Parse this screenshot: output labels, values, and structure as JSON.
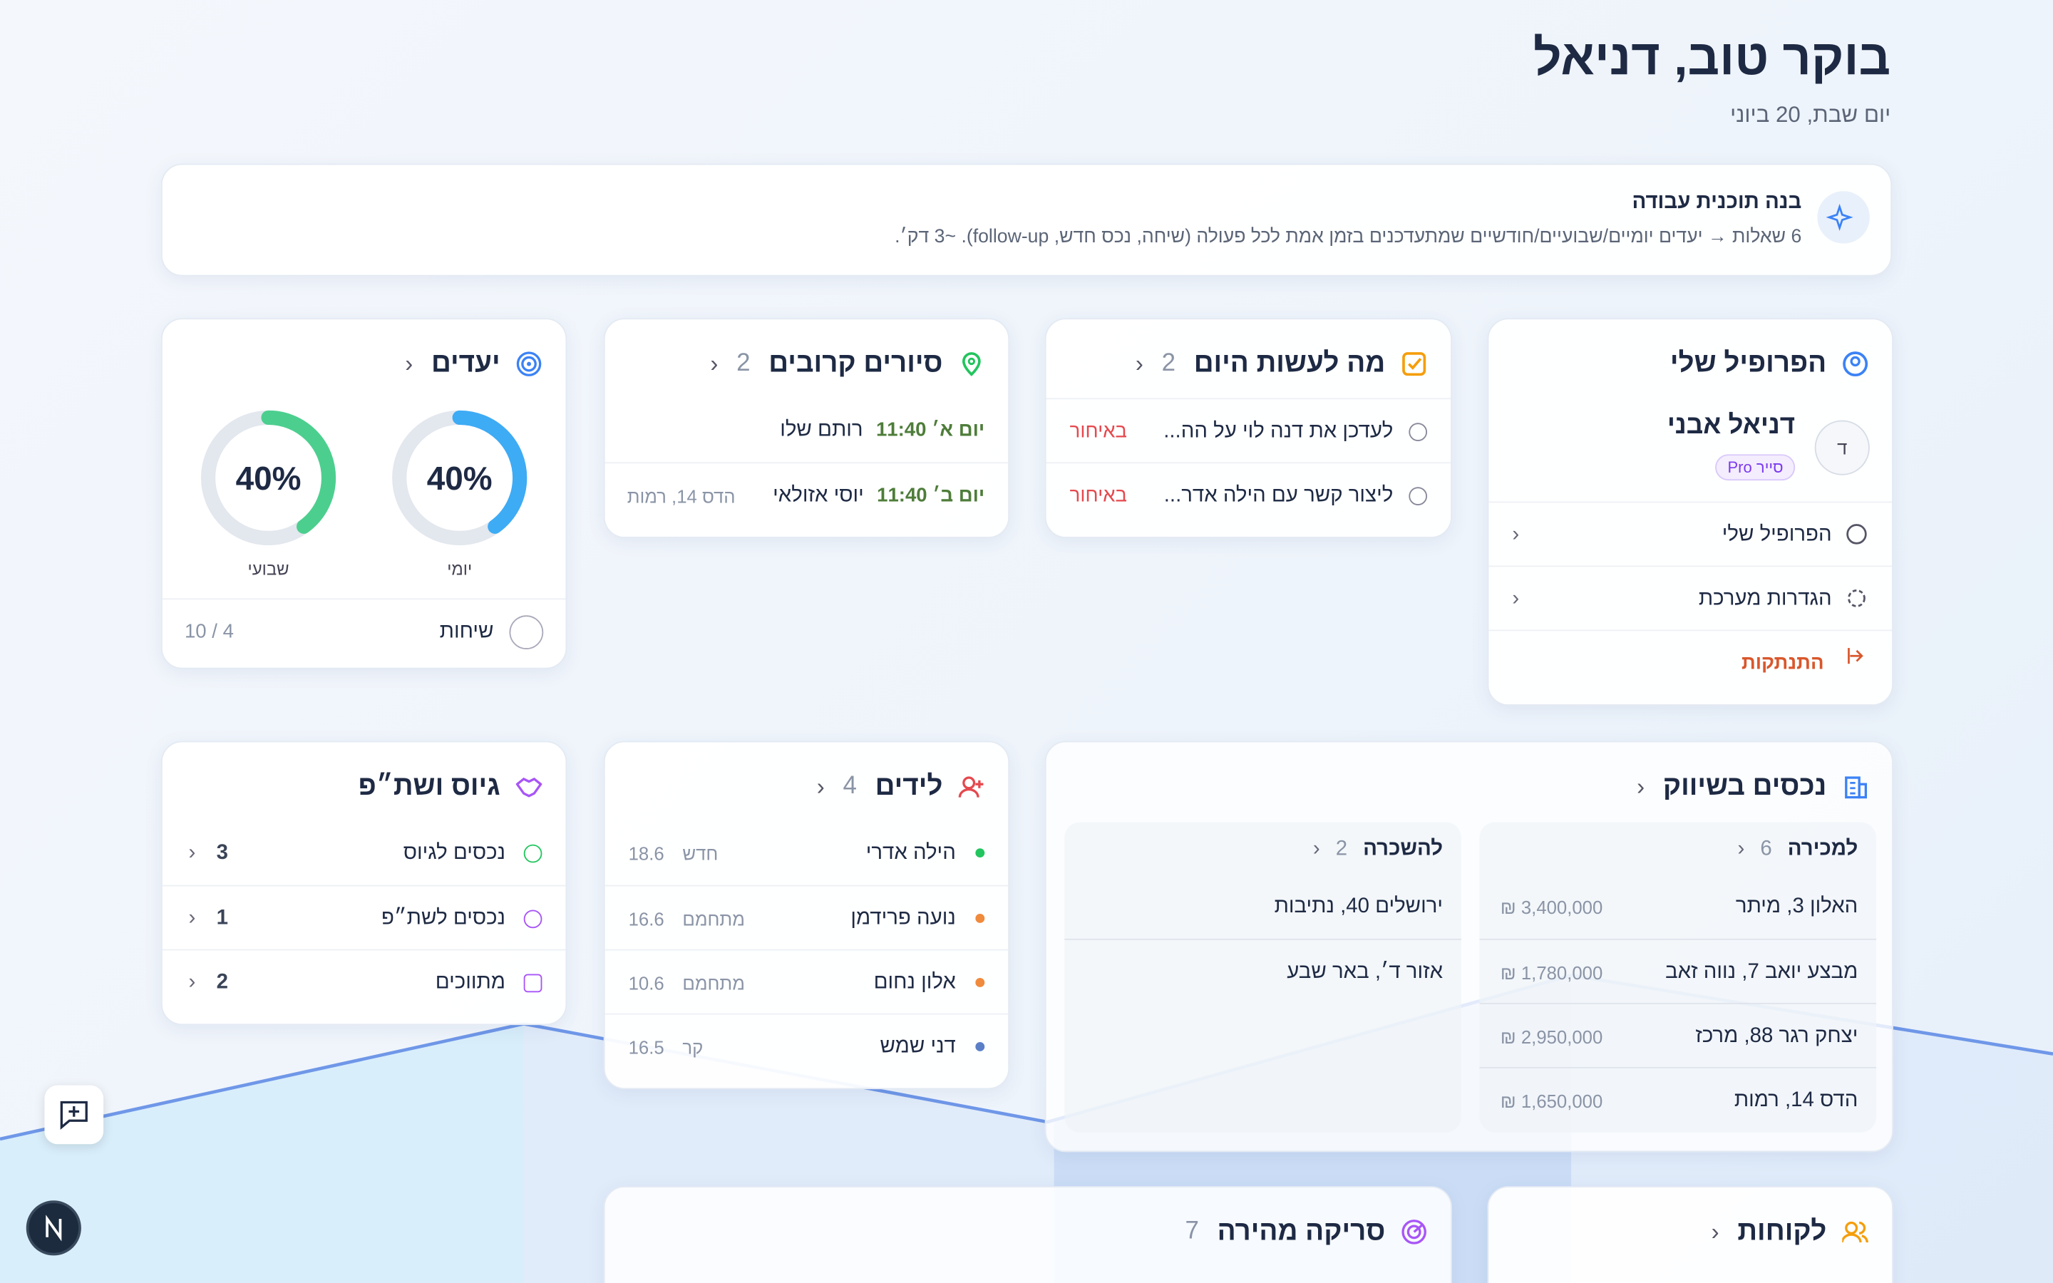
{
  "header": {
    "title": "בוקר טוב, דניאל",
    "date": "יום שבת, 20 ביוני"
  },
  "banner": {
    "title": "בנה תוכנית עבודה",
    "text": "6 שאלות → יעדים יומיים/שבועיים/חודשיים שמתעדכנים בזמן אמת לכל פעולה (שיחה, נכס חדש, follow-up). ~3 דק׳."
  },
  "profile": {
    "title": "הפרופיל שלי",
    "name": "דניאל אבני",
    "initial": "ד",
    "badge": "סייר Pro",
    "menu": [
      "הפרופיל שלי",
      "הגדרות מערכת"
    ],
    "logout": "התנתקות"
  },
  "today": {
    "title": "מה לעשות היום",
    "count": "2",
    "tasks": [
      {
        "text": "לעדכן את דנה לוי על הה...",
        "status": "באיחור"
      },
      {
        "text": "ליצור קשר עם הילה אדר...",
        "status": "באיחור"
      }
    ]
  },
  "tours": {
    "title": "סיורים קרובים",
    "count": "2",
    "items": [
      {
        "time": "יום א׳ 11:40",
        "name": "רותם שלו"
      },
      {
        "time": "יום ב׳ 11:40",
        "name": "יוסי אזולאי",
        "place": "הדס 14, רמות"
      }
    ]
  },
  "goals": {
    "title": "יעדים",
    "rings": [
      {
        "label": "יומי",
        "percent": {
          "value": 40,
          "label": "40%"
        }
      },
      {
        "label": "שבועי",
        "percent": {
          "value": 40,
          "label": "40%"
        }
      }
    ],
    "calls": {
      "label": "שיחות",
      "progress": "10 / 4"
    }
  },
  "listings": {
    "title": "נכסים בשיווק",
    "sale": {
      "title": "למכירה",
      "count": "6",
      "items": [
        {
          "address": "האלון 3, מיתר",
          "price": "3,400,000 ₪"
        },
        {
          "address": "מבצע יואב 7, נווה זאב",
          "price": "1,780,000 ₪"
        },
        {
          "address": "יצחק רגר 88, מרכז",
          "price": "2,950,000 ₪"
        },
        {
          "address": "הדס 14, רמות",
          "price": "1,650,000 ₪"
        }
      ]
    },
    "rent": {
      "title": "להשכרה",
      "count": "2",
      "items": [
        "ירושלים 40, נתיבות",
        "אזור ד׳, באר שבע"
      ]
    }
  },
  "leads": {
    "title": "לידים",
    "count": "4",
    "items": [
      {
        "name": "הילה אדרי",
        "status": "חדש",
        "score": "18.6"
      },
      {
        "name": "נועה פרידמן",
        "status": "מתחמם",
        "score": "16.6"
      },
      {
        "name": "אלון נחום",
        "status": "מתחמם",
        "score": "10.6"
      },
      {
        "name": "דני שמש",
        "status": "קר",
        "score": "16.5"
      }
    ]
  },
  "recruit": {
    "title": "גיוס ושת״פ",
    "items": [
      {
        "label": "נכסים לגיוס",
        "count": "3"
      },
      {
        "label": "נכסים לשת״פ",
        "count": "1"
      },
      {
        "label": "מתווכים",
        "count": "2"
      }
    ]
  },
  "clients": {
    "title": "לקוחות"
  },
  "scan": {
    "title": "סריקה מהירה",
    "count": "7"
  }
}
